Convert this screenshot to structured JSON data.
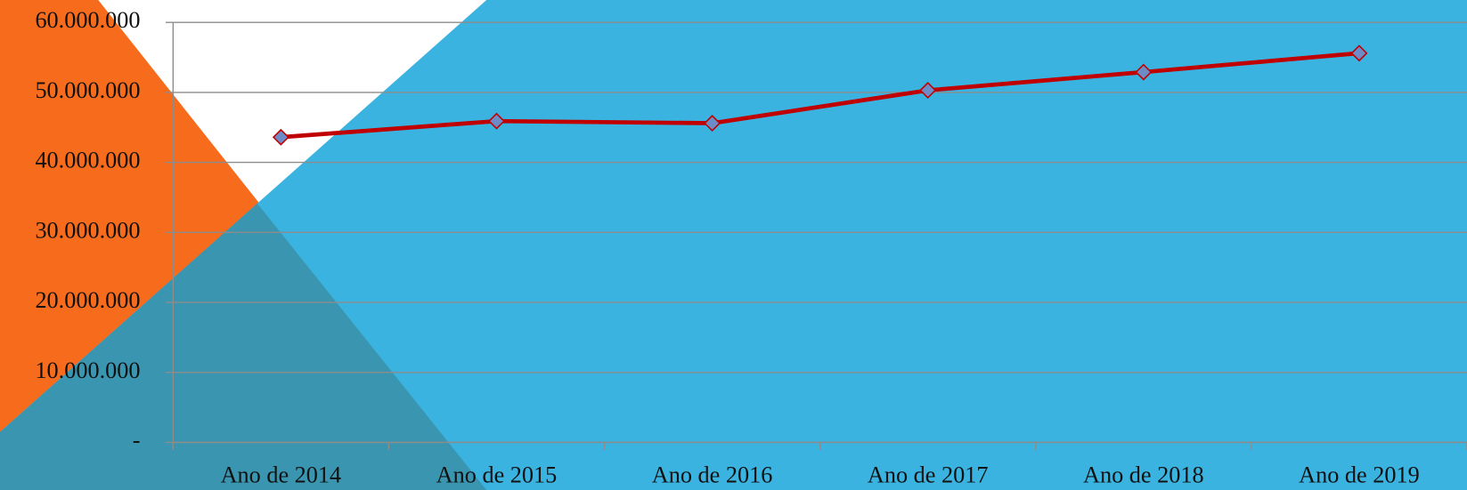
{
  "chart_data": {
    "type": "line",
    "categories": [
      "Ano de 2014",
      "Ano de 2015",
      "Ano de 2016",
      "Ano de 2017",
      "Ano de 2018",
      "Ano de 2019"
    ],
    "series": [
      {
        "color": "#c00000",
        "values": [
          43600000,
          45900000,
          45600000,
          50300000,
          52900000,
          55600000
        ]
      }
    ],
    "ylim": [
      0,
      60000000
    ],
    "yticks": [
      {
        "value": 0,
        "label": "-"
      },
      {
        "value": 10000000,
        "label": "10.000.000"
      },
      {
        "value": 20000000,
        "label": "20.000.000"
      },
      {
        "value": 30000000,
        "label": "30.000.000"
      },
      {
        "value": 40000000,
        "label": "40.000.000"
      },
      {
        "value": 50000000,
        "label": "50.000.000"
      },
      {
        "value": 60000000,
        "label": "60.000.000"
      }
    ],
    "grid": true
  }
}
